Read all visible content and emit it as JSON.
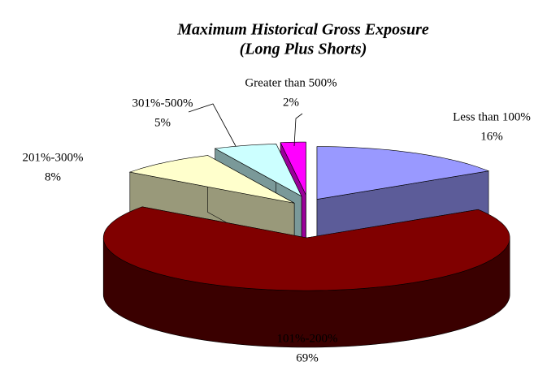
{
  "chart_data": {
    "type": "pie3d",
    "title": "Maximum Historical Gross Exposure",
    "subtitle": "(Long Plus Shorts)",
    "categories": [
      "Less than 100%",
      "101%-200%",
      "201%-300%",
      "301%-500%",
      "Greater than 500%"
    ],
    "values": [
      16,
      69,
      8,
      5,
      2
    ],
    "value_labels": [
      "16%",
      "69%",
      "8%",
      "5%",
      "2%"
    ],
    "colors": [
      "#9999ff",
      "#800000",
      "#ffffcc",
      "#ccffff",
      "#ff00ff"
    ]
  }
}
